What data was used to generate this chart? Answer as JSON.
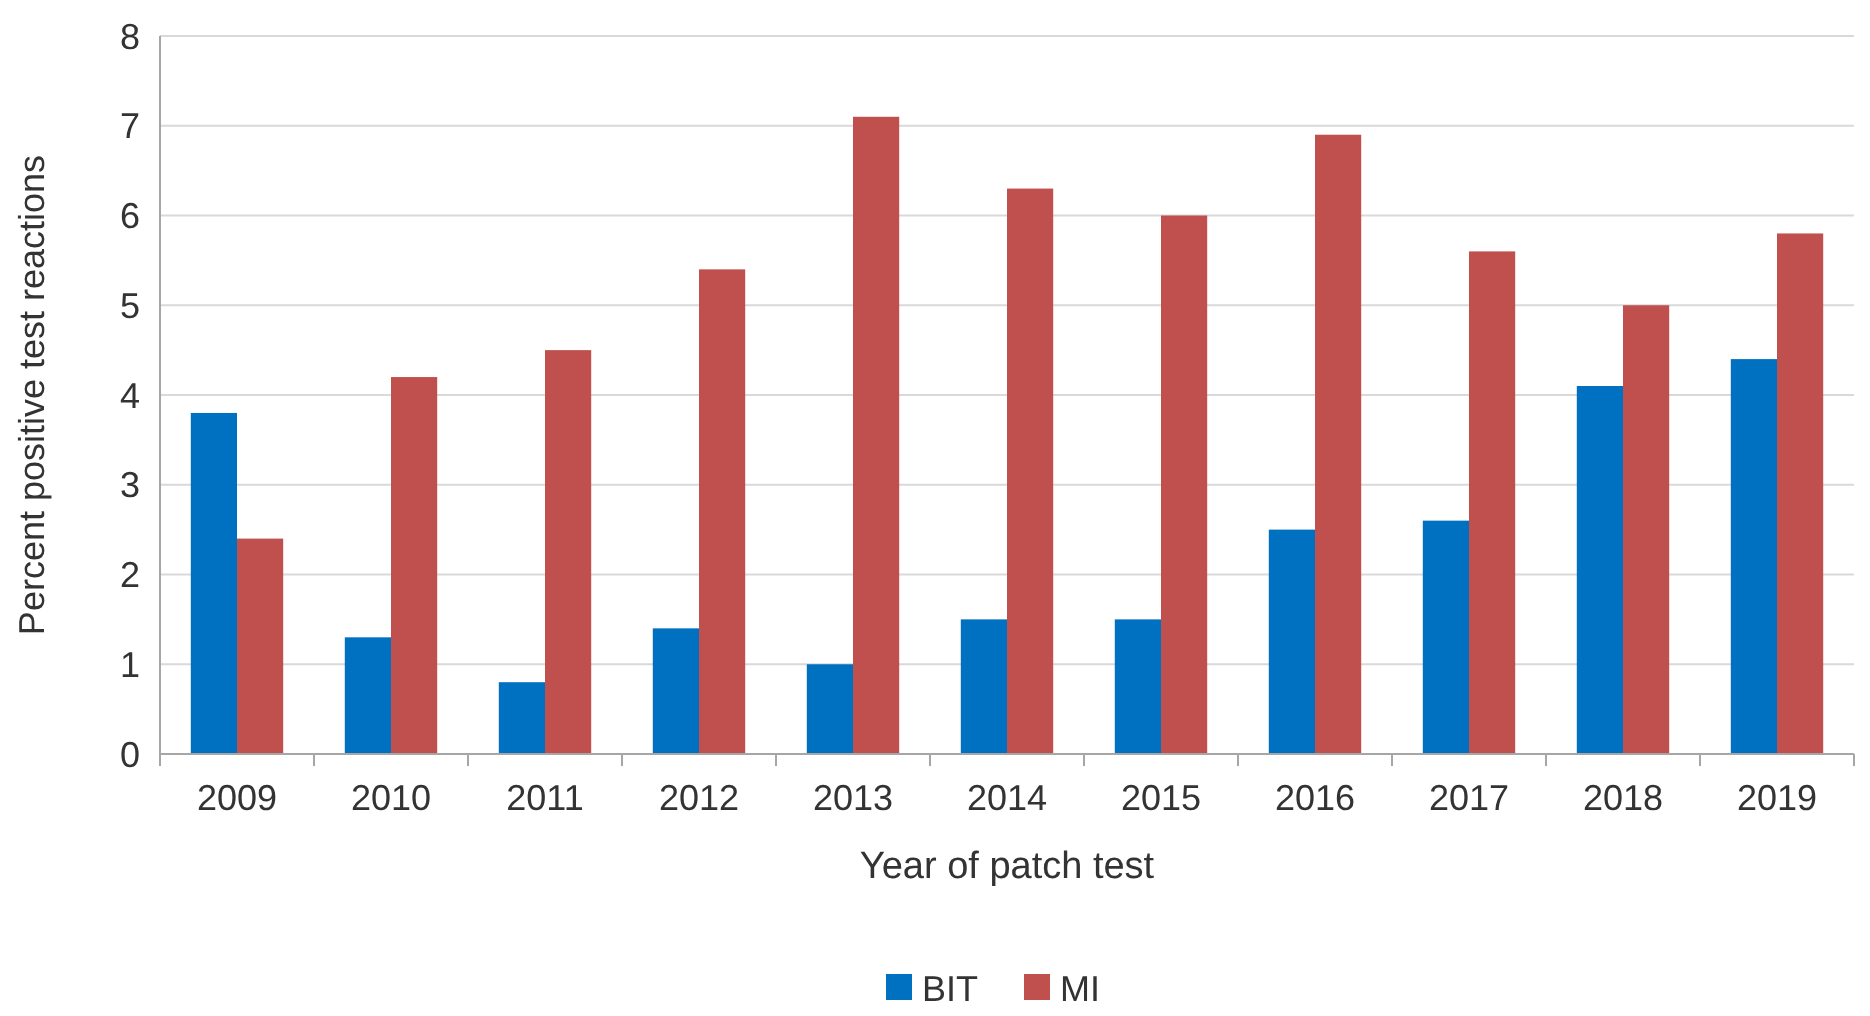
{
  "chart_data": {
    "type": "bar",
    "xlabel": "Year of patch test",
    "ylabel": "Percent positive test reactions",
    "categories": [
      "2009",
      "2010",
      "2011",
      "2012",
      "2013",
      "2014",
      "2015",
      "2016",
      "2017",
      "2018",
      "2019"
    ],
    "series": [
      {
        "name": "BIT",
        "color": "#0070c0",
        "values": [
          3.8,
          1.3,
          0.8,
          1.4,
          1.0,
          1.5,
          1.5,
          2.5,
          2.6,
          4.1,
          4.4
        ]
      },
      {
        "name": "MI",
        "color": "#c0504d",
        "values": [
          2.4,
          4.2,
          4.5,
          5.4,
          7.1,
          6.3,
          6.0,
          6.9,
          5.6,
          5.0,
          5.8
        ]
      }
    ],
    "ylim": [
      0,
      8
    ],
    "yticks": [
      0,
      1,
      2,
      3,
      4,
      5,
      6,
      7,
      8
    ],
    "grid": "y",
    "legend": "bottom"
  }
}
